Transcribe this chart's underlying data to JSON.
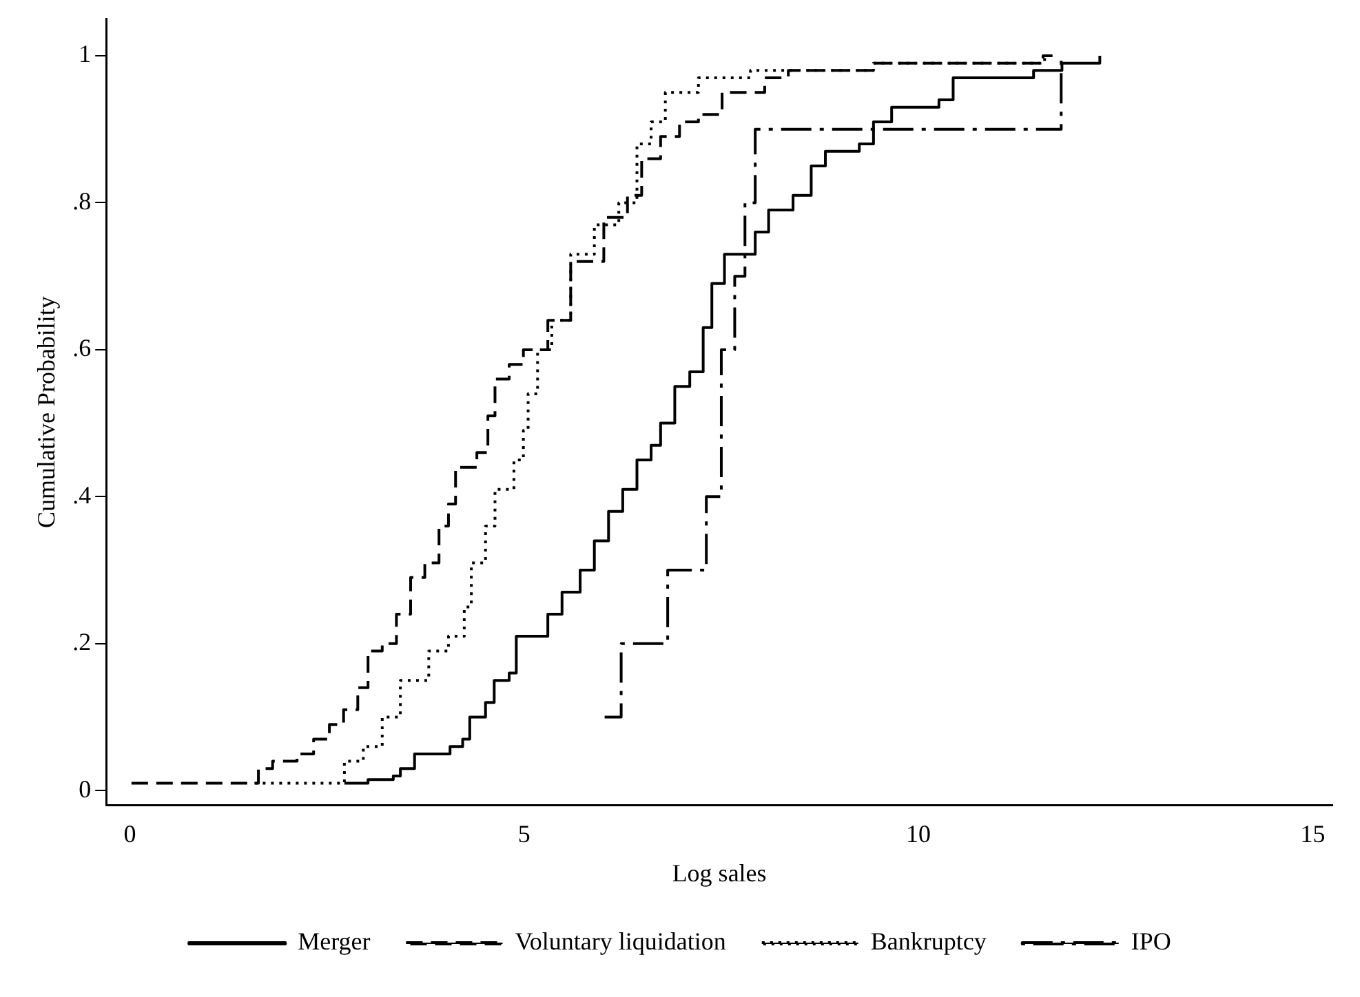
{
  "chart_data": {
    "type": "step",
    "xlabel": "Log sales",
    "ylabel": "Cumulative Probability",
    "xlim": [
      -0.3,
      15.25
    ],
    "ylim": [
      -0.02,
      1.05
    ],
    "xticks": [
      0,
      5,
      10,
      15
    ],
    "yticks": [
      0,
      {
        "value": 0.2,
        "label": ".2"
      },
      {
        "value": 0.4,
        "label": ".4"
      },
      {
        "value": 0.6,
        "label": ".6"
      },
      {
        "value": 0.8,
        "label": ".8"
      },
      1
    ],
    "grid": false,
    "legend": "bottom",
    "marker": "none",
    "series": [
      {
        "name": "Merger",
        "color": "#000000",
        "line_style": "solid",
        "x": [
          2.72,
          3.02,
          3.34,
          3.43,
          3.61,
          3.79,
          4.06,
          4.22,
          4.31,
          4.51,
          4.62,
          4.81,
          4.9,
          5.0,
          5.3,
          5.48,
          5.71,
          5.89,
          6.07,
          6.25,
          6.43,
          6.61,
          6.73,
          6.91,
          7.1,
          7.27,
          7.38,
          7.54,
          7.78,
          7.93,
          8.1,
          8.41,
          8.64,
          8.82,
          9.25,
          9.43,
          9.66,
          10.26,
          10.44,
          11.1,
          11.46,
          11.82,
          12.3
        ],
        "values": [
          0.01,
          0.015,
          0.02,
          0.03,
          0.05,
          0.05,
          0.06,
          0.07,
          0.1,
          0.12,
          0.15,
          0.16,
          0.21,
          0.21,
          0.24,
          0.27,
          0.3,
          0.34,
          0.38,
          0.41,
          0.45,
          0.47,
          0.5,
          0.55,
          0.57,
          0.63,
          0.69,
          0.73,
          0.73,
          0.76,
          0.79,
          0.81,
          0.85,
          0.87,
          0.88,
          0.91,
          0.93,
          0.94,
          0.97,
          0.97,
          0.98,
          0.99,
          1
        ]
      },
      {
        "name": "Voluntary liquidation",
        "color": "#000000",
        "line_style": "dashed",
        "x": [
          0.02,
          1.63,
          1.81,
          2.12,
          2.33,
          2.53,
          2.71,
          2.89,
          3.02,
          3.2,
          3.38,
          3.56,
          3.74,
          3.92,
          4.04,
          4.13,
          4.4,
          4.54,
          4.63,
          4.81,
          4.99,
          5.3,
          5.59,
          6.01,
          6.31,
          6.49,
          6.73,
          6.97,
          7.21,
          7.51,
          8.05,
          8.35,
          9.43,
          11.58,
          11.7
        ],
        "values": [
          0.01,
          0.03,
          0.04,
          0.05,
          0.07,
          0.09,
          0.11,
          0.14,
          0.19,
          0.2,
          0.24,
          0.29,
          0.31,
          0.36,
          0.39,
          0.44,
          0.46,
          0.51,
          0.56,
          0.58,
          0.6,
          0.64,
          0.72,
          0.78,
          0.81,
          0.86,
          0.89,
          0.91,
          0.92,
          0.95,
          0.97,
          0.98,
          0.99,
          1,
          1
        ]
      },
      {
        "name": "Bankruptcy",
        "color": "#000000",
        "line_style": "dotted",
        "x": [
          1.58,
          2.72,
          2.96,
          3.2,
          3.43,
          3.79,
          4.04,
          4.24,
          4.33,
          4.51,
          4.63,
          4.87,
          4.99,
          5.05,
          5.17,
          5.35,
          5.59,
          5.89,
          6.2,
          6.43,
          6.61,
          6.79,
          7.21,
          7.87,
          9.43,
          11.6
        ],
        "values": [
          0.01,
          0.04,
          0.06,
          0.1,
          0.15,
          0.19,
          0.21,
          0.25,
          0.31,
          0.36,
          0.41,
          0.45,
          0.49,
          0.54,
          0.6,
          0.64,
          0.73,
          0.77,
          0.8,
          0.88,
          0.91,
          0.95,
          0.97,
          0.98,
          0.99,
          1
        ]
      },
      {
        "name": "IPO",
        "color": "#000000",
        "line_style": "dashdot",
        "x": [
          6.02,
          6.23,
          6.82,
          7.31,
          7.5,
          7.67,
          7.8,
          7.93,
          11.81
        ],
        "values": [
          0.1,
          0.2,
          0.3,
          0.4,
          0.6,
          0.7,
          0.8,
          0.9,
          1
        ]
      }
    ]
  }
}
